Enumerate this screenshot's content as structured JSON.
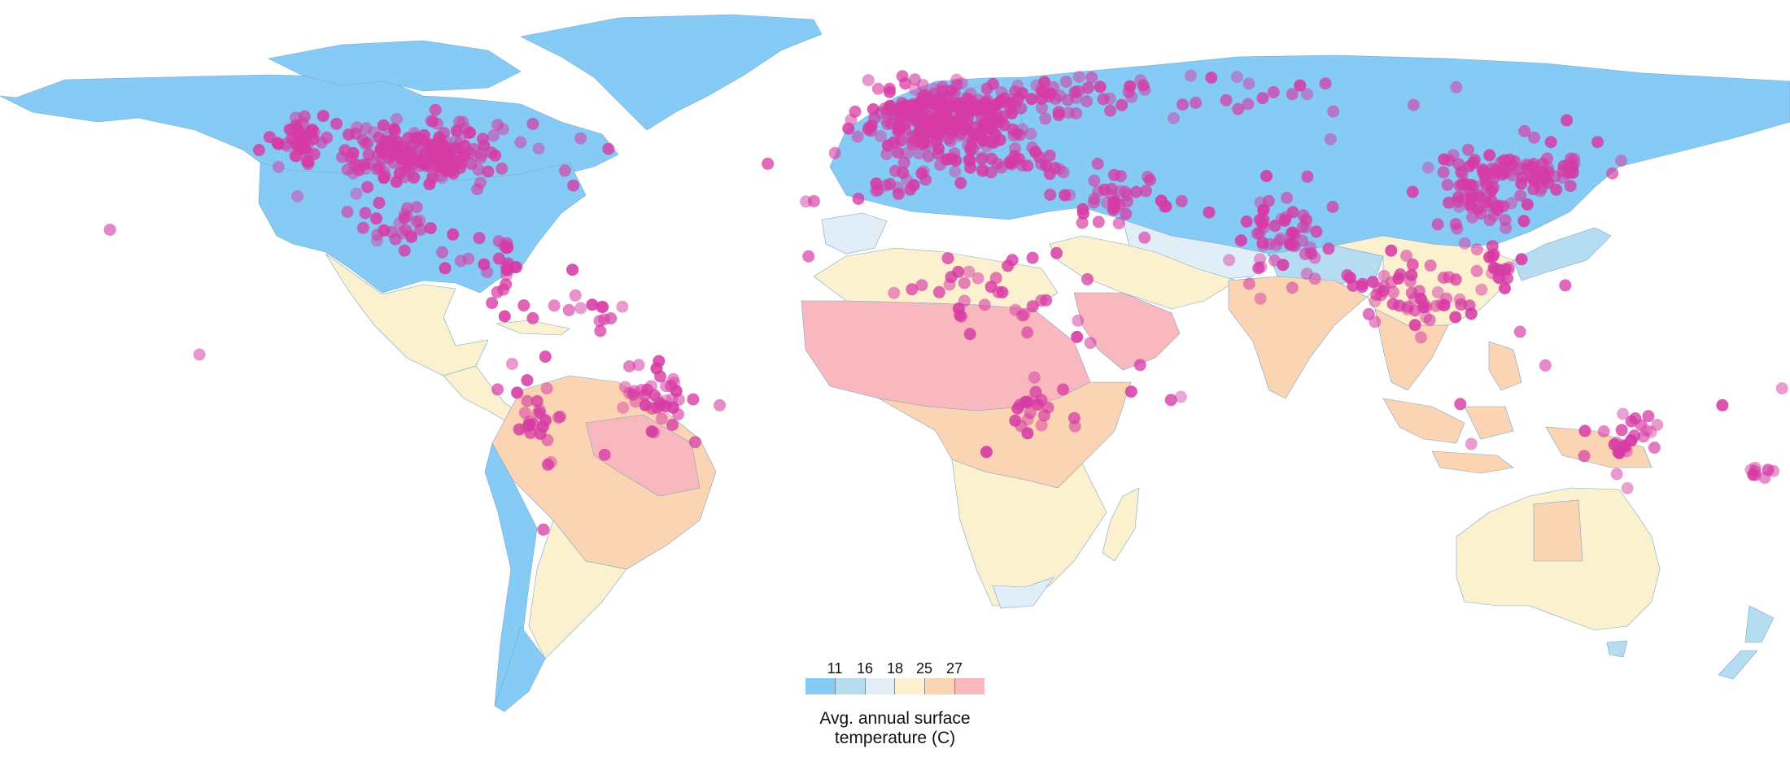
{
  "colors": {
    "ocean": "#ffffff",
    "border": "#7ba7c9",
    "dot": "#d63aa4",
    "bins": [
      "#85cbf6",
      "#b6dcf2",
      "#e2eef7",
      "#fcf1cf",
      "#fbd4b3",
      "#f9b8bd"
    ]
  },
  "legend": {
    "ticks": [
      "11",
      "16",
      "18",
      "25",
      "27"
    ],
    "title_line1": "Avg. annual surface",
    "title_line2": "temperature (C)"
  },
  "map_data": {
    "type": "choropleth-with-points",
    "regions": [
      {
        "name": "Canada and Alaska",
        "bin": 0
      },
      {
        "name": "Greenland",
        "bin": 0
      },
      {
        "name": "Northern Eurasia",
        "bin": 0
      },
      {
        "name": "United States",
        "bin": 0
      },
      {
        "name": "Mexico",
        "bin": 3
      },
      {
        "name": "Central America",
        "bin": 3
      },
      {
        "name": "Northern South America",
        "bin": 4
      },
      {
        "name": "Amazon",
        "bin": 5
      },
      {
        "name": "Southern South America",
        "bin": 3
      },
      {
        "name": "Andes",
        "bin": 0
      },
      {
        "name": "Patagonia",
        "bin": 0
      },
      {
        "name": "Iberia",
        "bin": 2
      },
      {
        "name": "Northern Africa",
        "bin": 3
      },
      {
        "name": "Sahara and Sahel",
        "bin": 5
      },
      {
        "name": "Central Africa",
        "bin": 4
      },
      {
        "name": "Southern Africa",
        "bin": 3
      },
      {
        "name": "Madagascar",
        "bin": 3
      },
      {
        "name": "Arabian Peninsula",
        "bin": 5
      },
      {
        "name": "Middle East",
        "bin": 3
      },
      {
        "name": "Central Asia",
        "bin": 2
      },
      {
        "name": "Tibetan Plateau",
        "bin": 1
      },
      {
        "name": "India",
        "bin": 4
      },
      {
        "name": "China",
        "bin": 3
      },
      {
        "name": "Southeast Asia",
        "bin": 4
      },
      {
        "name": "Japan and Korea",
        "bin": 1
      },
      {
        "name": "Indonesia",
        "bin": 4
      },
      {
        "name": "New Guinea",
        "bin": 4
      },
      {
        "name": "Australia",
        "bin": 3
      },
      {
        "name": "Northern Australia",
        "bin": 4
      },
      {
        "name": "New Zealand",
        "bin": 1
      }
    ],
    "clusters": [
      {
        "lon": -95,
        "lat": 40,
        "n": 190,
        "sx": 16,
        "sy": 6
      },
      {
        "lon": -120,
        "lat": 45,
        "n": 40,
        "sx": 5,
        "sy": 6
      },
      {
        "lon": -100,
        "lat": 22,
        "n": 25,
        "sx": 7,
        "sy": 5
      },
      {
        "lon": -80,
        "lat": 12,
        "n": 25,
        "sx": 8,
        "sy": 6
      },
      {
        "lon": -48,
        "lat": -20,
        "n": 40,
        "sx": 8,
        "sy": 8
      },
      {
        "lon": -72,
        "lat": -25,
        "n": 25,
        "sx": 4,
        "sy": 12
      },
      {
        "lon": -62,
        "lat": 0,
        "n": 15,
        "sx": 10,
        "sy": 6
      },
      {
        "lon": 10,
        "lat": 49,
        "n": 280,
        "sx": 12,
        "sy": 7
      },
      {
        "lon": 28,
        "lat": 55,
        "n": 40,
        "sx": 10,
        "sy": 7
      },
      {
        "lon": 20,
        "lat": 38,
        "n": 40,
        "sx": 12,
        "sy": 3
      },
      {
        "lon": 0,
        "lat": 32,
        "n": 15,
        "sx": 8,
        "sy": 4
      },
      {
        "lon": 60,
        "lat": 55,
        "n": 30,
        "sx": 30,
        "sy": 5
      },
      {
        "lon": 45,
        "lat": 28,
        "n": 40,
        "sx": 10,
        "sy": 7
      },
      {
        "lon": 78,
        "lat": 20,
        "n": 55,
        "sx": 7,
        "sy": 9
      },
      {
        "lon": 118,
        "lat": 32,
        "n": 80,
        "sx": 9,
        "sy": 8
      },
      {
        "lon": 132,
        "lat": 36,
        "n": 40,
        "sx": 7,
        "sy": 4
      },
      {
        "lon": 104,
        "lat": 5,
        "n": 55,
        "sx": 10,
        "sy": 7
      },
      {
        "lon": 122,
        "lat": 12,
        "n": 20,
        "sx": 4,
        "sy": 5
      },
      {
        "lon": 20,
        "lat": 5,
        "n": 30,
        "sx": 15,
        "sy": 8
      },
      {
        "lon": 30,
        "lat": -22,
        "n": 20,
        "sx": 7,
        "sy": 8
      },
      {
        "lon": 148,
        "lat": -32,
        "n": 25,
        "sx": 5,
        "sy": 6
      },
      {
        "lon": 174,
        "lat": -40,
        "n": 8,
        "sx": 2,
        "sy": 3
      }
    ],
    "points": [
      {
        "lon": -157.9,
        "lat": 21.3
      },
      {
        "lon": -149.9,
        "lat": 61.2
      },
      {
        "lon": -147.7,
        "lat": 64.8
      },
      {
        "lon": -139.9,
        "lat": -9.7
      },
      {
        "lon": -21.9,
        "lat": 64.1
      },
      {
        "lon": -17.9,
        "lat": 28.3
      },
      {
        "lon": -16.3,
        "lat": 28.4
      },
      {
        "lon": -25.6,
        "lat": 37.7
      },
      {
        "lon": -46.6,
        "lat": 63.5
      },
      {
        "lon": -64.7,
        "lat": 32.3
      },
      {
        "lon": 57.5,
        "lat": -20.2
      },
      {
        "lon": 55.5,
        "lat": -21.0
      },
      {
        "lon": 47.5,
        "lat": -18.9
      },
      {
        "lon": 49.3,
        "lat": -12.3
      },
      {
        "lon": 134.8,
        "lat": 7.5
      },
      {
        "lon": 166.4,
        "lat": -22.3
      },
      {
        "lon": 178.4,
        "lat": -18.1
      },
      {
        "lon": 73.5,
        "lat": 4.2
      },
      {
        "lon": 79.9,
        "lat": 6.9
      },
      {
        "lon": 130.8,
        "lat": -12.4
      },
      {
        "lon": 115.9,
        "lat": -31.9
      },
      {
        "lon": 138.6,
        "lat": -34.9
      },
      {
        "lon": 113.7,
        "lat": -22.0
      },
      {
        "lon": 147.3,
        "lat": -42.9
      },
      {
        "lon": -58.4,
        "lat": -34.6
      },
      {
        "lon": -70.7,
        "lat": -53.2
      },
      {
        "lon": -78.5,
        "lat": -0.2
      },
      {
        "lon": -77.0,
        "lat": -12.0
      },
      {
        "lon": 18.4,
        "lat": -33.9
      },
      {
        "lon": -17.4,
        "lat": 14.7
      },
      {
        "lon": -0.2,
        "lat": 5.6
      },
      {
        "lon": 3.4,
        "lat": 6.5
      },
      {
        "lon": 36.8,
        "lat": -1.3
      },
      {
        "lon": 39.3,
        "lat": -6.8
      },
      {
        "lon": 38.7,
        "lat": 9.0
      },
      {
        "lon": 32.5,
        "lat": 15.5
      },
      {
        "lon": 31.2,
        "lat": 30.0
      },
      {
        "lon": 13.2,
        "lat": 32.9
      },
      {
        "lon": 104.1,
        "lat": 30.7
      },
      {
        "lon": 87.6,
        "lat": 43.8
      },
      {
        "lon": 126.6,
        "lat": 45.8
      },
      {
        "lon": 131.9,
        "lat": 43.1
      },
      {
        "lon": 141.3,
        "lat": 43.1
      },
      {
        "lon": 135.1,
        "lat": 48.5
      },
      {
        "lon": 112.9,
        "lat": 56.7
      },
      {
        "lon": 82.9,
        "lat": 55.0
      },
      {
        "lon": 104.3,
        "lat": 52.3
      },
      {
        "lon": 73.4,
        "lat": 61.3
      },
      {
        "lon": 33.1,
        "lat": 68.9
      },
      {
        "lon": 18.9,
        "lat": 69.6
      },
      {
        "lon": 25.7,
        "lat": 66.5
      }
    ]
  }
}
